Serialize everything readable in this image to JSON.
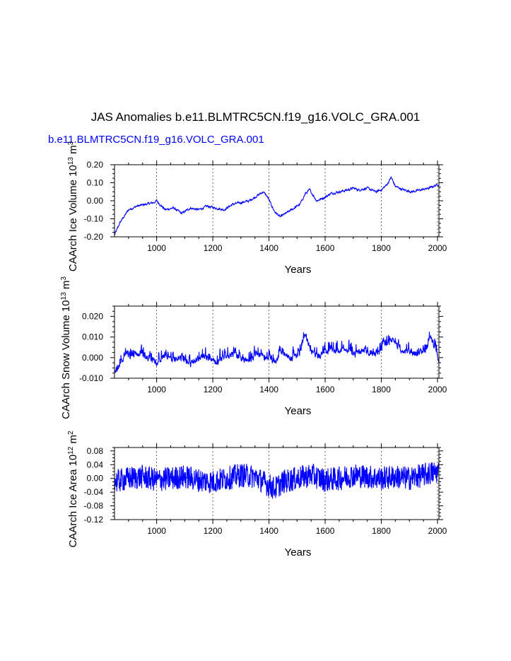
{
  "title": "JAS Anomalies b.e11.BLMTRC5CN.f19_g16.VOLC_GRA.001",
  "subtitle": "b.e11.BLMTRC5CN.f19_g16.VOLC_GRA.001",
  "colors": {
    "series": "#0000ff",
    "axes": "#000000"
  },
  "chart_data": [
    {
      "type": "line",
      "title": "",
      "xlabel": "Years",
      "ylabel_text": "CAArch Ice Volume 10",
      "ylabel_exp": "13",
      "ylabel_unit": " m",
      "ylabel_unit_exp": "3",
      "xlim": [
        850,
        2005
      ],
      "ylim": [
        -0.2,
        0.2
      ],
      "xticks": [
        "1000",
        "1200",
        "1400",
        "1600",
        "1800",
        "2000"
      ],
      "yticks": [
        "-0.20",
        "-0.10",
        "0.00",
        "0.10",
        "0.20"
      ],
      "series": [
        {
          "name": "Ice Volume",
          "x": [
            850,
            870,
            900,
            930,
            960,
            990,
            1000,
            1030,
            1060,
            1090,
            1120,
            1150,
            1180,
            1210,
            1240,
            1270,
            1300,
            1330,
            1360,
            1380,
            1395,
            1420,
            1440,
            1460,
            1490,
            1510,
            1530,
            1545,
            1570,
            1600,
            1620,
            1650,
            1680,
            1700,
            1720,
            1750,
            1780,
            1800,
            1820,
            1835,
            1850,
            1880,
            1910,
            1940,
            1970,
            2000
          ],
          "values": [
            -0.19,
            -0.12,
            -0.05,
            -0.03,
            -0.02,
            -0.01,
            0.0,
            -0.05,
            -0.04,
            -0.07,
            -0.04,
            -0.05,
            -0.03,
            -0.04,
            -0.05,
            -0.02,
            -0.01,
            0.0,
            0.03,
            0.05,
            0.02,
            -0.06,
            -0.09,
            -0.07,
            -0.04,
            -0.02,
            0.04,
            0.06,
            0.0,
            0.02,
            0.04,
            0.05,
            0.06,
            0.07,
            0.06,
            0.07,
            0.05,
            0.06,
            0.09,
            0.13,
            0.08,
            0.06,
            0.05,
            0.06,
            0.07,
            0.09
          ]
        }
      ]
    },
    {
      "type": "line",
      "title": "",
      "xlabel": "Years",
      "ylabel_text": "CAArch Snow Volume 10",
      "ylabel_exp": "13",
      "ylabel_unit": " m",
      "ylabel_unit_exp": "3",
      "xlim": [
        850,
        2005
      ],
      "ylim": [
        -0.01,
        0.025
      ],
      "xticks": [
        "1000",
        "1200",
        "1400",
        "1600",
        "1800",
        "2000"
      ],
      "yticks": [
        "-0.010",
        "0.000",
        "0.010",
        "0.020"
      ],
      "series": [
        {
          "name": "Snow Volume",
          "x": [
            850,
            880,
            910,
            940,
            970,
            1000,
            1030,
            1060,
            1090,
            1120,
            1150,
            1180,
            1210,
            1240,
            1270,
            1300,
            1330,
            1360,
            1390,
            1420,
            1450,
            1480,
            1510,
            1530,
            1550,
            1580,
            1610,
            1640,
            1670,
            1700,
            1730,
            1760,
            1790,
            1810,
            1840,
            1870,
            1900,
            1930,
            1960,
            1975,
            1990,
            2005
          ],
          "values": [
            -0.008,
            0.0,
            0.001,
            0.002,
            0.0,
            -0.002,
            0.001,
            -0.001,
            0.0,
            -0.003,
            0.0,
            0.001,
            -0.002,
            0.0,
            0.002,
            0.0,
            -0.001,
            0.002,
            0.0,
            -0.002,
            0.003,
            0.0,
            0.002,
            0.012,
            0.003,
            0.001,
            0.004,
            0.003,
            0.005,
            0.002,
            0.004,
            0.003,
            0.002,
            0.006,
            0.009,
            0.004,
            0.003,
            0.002,
            0.004,
            0.011,
            0.005,
            -0.002
          ]
        }
      ]
    },
    {
      "type": "line",
      "title": "",
      "xlabel": "Years",
      "ylabel_text": "CAArch Ice Area 10",
      "ylabel_exp": "12",
      "ylabel_unit": " m",
      "ylabel_unit_exp": "2",
      "xlim": [
        850,
        2005
      ],
      "ylim": [
        -0.12,
        0.09
      ],
      "xticks": [
        "1000",
        "1200",
        "1400",
        "1600",
        "1800",
        "2000"
      ],
      "yticks": [
        "-0.12",
        "-0.08",
        "-0.04",
        "0.00",
        "0.04",
        "0.08"
      ],
      "series": [
        {
          "name": "Ice Area",
          "x": [
            850,
            900,
            950,
            1000,
            1050,
            1100,
            1150,
            1200,
            1250,
            1300,
            1350,
            1400,
            1420,
            1450,
            1500,
            1550,
            1600,
            1650,
            1700,
            1750,
            1800,
            1850,
            1900,
            1950,
            2000
          ],
          "values": [
            -0.01,
            0.0,
            0.005,
            -0.005,
            0.0,
            0.005,
            -0.005,
            -0.01,
            0.0,
            0.01,
            0.005,
            -0.02,
            -0.03,
            -0.01,
            0.0,
            0.01,
            -0.005,
            0.0,
            0.01,
            0.005,
            0.0,
            0.005,
            0.0,
            0.01,
            0.02
          ]
        }
      ]
    }
  ]
}
